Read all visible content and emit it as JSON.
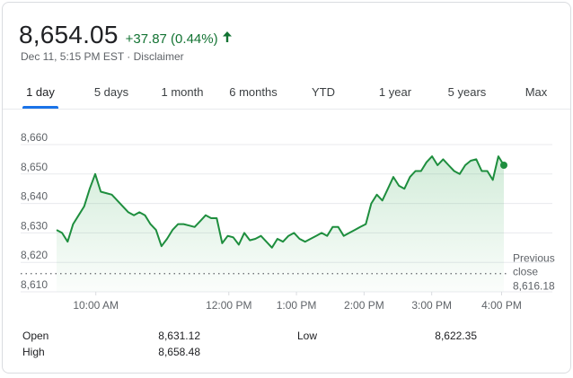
{
  "quote": {
    "price": "8,654.05",
    "change": "+37.87 (0.44%)",
    "meta": "Dec 11, 5:15 PM EST · Disclaimer"
  },
  "tabs": [
    {
      "label": "1 day",
      "active": true
    },
    {
      "label": "5 days",
      "active": false
    },
    {
      "label": "1 month",
      "active": false
    },
    {
      "label": "6 months",
      "active": false
    },
    {
      "label": "YTD",
      "active": false
    },
    {
      "label": "1 year",
      "active": false
    },
    {
      "label": "5 years",
      "active": false
    },
    {
      "label": "Max",
      "active": false
    }
  ],
  "colors": {
    "up": "#137333",
    "line": "#1e8e3e",
    "tab_indicator": "#1a73e8"
  },
  "chart_data": {
    "type": "area",
    "x_ticks": [
      "10:00 AM",
      "12:00 PM",
      "1:00 PM",
      "2:00 PM",
      "3:00 PM",
      "4:00 PM"
    ],
    "y_ticks": [
      "8,660",
      "8,650",
      "8,640",
      "8,630",
      "8,620",
      "8,610"
    ],
    "ylim": [
      8610,
      8660
    ],
    "previous_close": {
      "label_line1": "Previous",
      "label_line2": "close",
      "value": "8,616.18",
      "y": 8616.18
    },
    "series": [
      {
        "values": [
          8631,
          8630,
          8627,
          8633,
          8636,
          8639,
          8645,
          8650,
          8644,
          8643.5,
          8643,
          8641,
          8639,
          8637,
          8636,
          8637,
          8636,
          8633,
          8631,
          8625.5,
          8628,
          8631,
          8633,
          8633,
          8632.5,
          8632,
          8634,
          8636,
          8635,
          8635,
          8626.5,
          8629,
          8628.5,
          8626,
          8630,
          8627.5,
          8628,
          8629,
          8627,
          8625,
          8628,
          8627,
          8629,
          8630,
          8628,
          8627,
          8628,
          8629,
          8630,
          8629,
          8632,
          8632,
          8629,
          8630,
          8631,
          8632,
          8633,
          8640,
          8643,
          8641,
          8645,
          8649,
          8646,
          8645,
          8649,
          8651,
          8651,
          8654,
          8656,
          8653,
          8655,
          8653,
          8651,
          8650,
          8653,
          8654.5,
          8655,
          8651,
          8651,
          8648,
          8656,
          8653
        ],
        "last_value": 8653
      }
    ]
  },
  "stats": {
    "open_label": "Open",
    "open_value": "8,631.12",
    "high_label": "High",
    "high_value": "8,658.48",
    "low_label": "Low",
    "low_value": "8,622.35"
  }
}
